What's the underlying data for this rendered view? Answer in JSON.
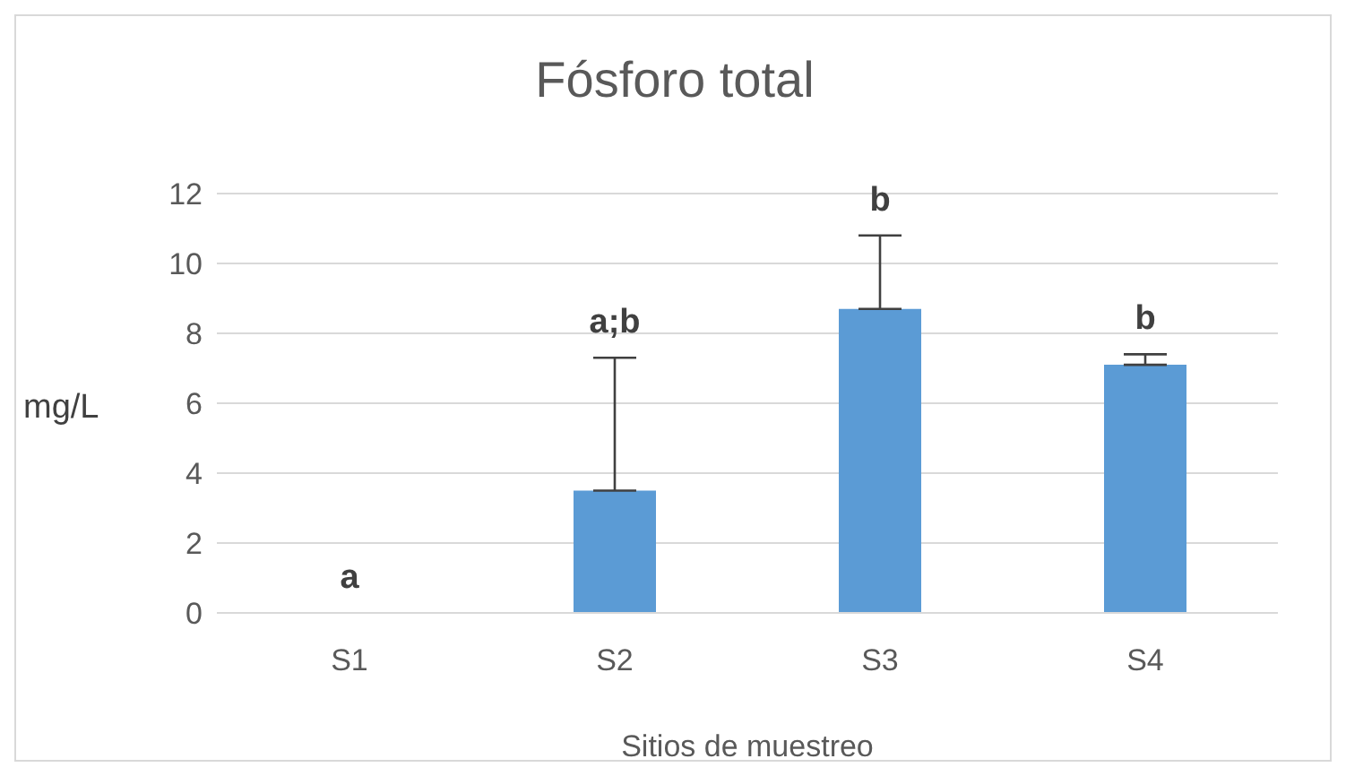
{
  "chart_data": {
    "type": "bar",
    "title": "Fósforo total",
    "xlabel": "Sitios de muestreo",
    "ylabel": "mg/L",
    "categories": [
      "S1",
      "S2",
      "S3",
      "S4"
    ],
    "values": [
      0,
      3.5,
      8.7,
      7.1
    ],
    "errors": [
      null,
      [
        3.5,
        7.3
      ],
      [
        8.7,
        10.8
      ],
      [
        7.1,
        7.4
      ]
    ],
    "color": "#5b9bd5",
    "ylim": [
      0,
      12
    ],
    "yticks": [
      0,
      2,
      4,
      6,
      8,
      10,
      12
    ],
    "grid": "y",
    "legend": false,
    "annotations": [
      "a",
      "a;b",
      "b",
      "b"
    ]
  }
}
